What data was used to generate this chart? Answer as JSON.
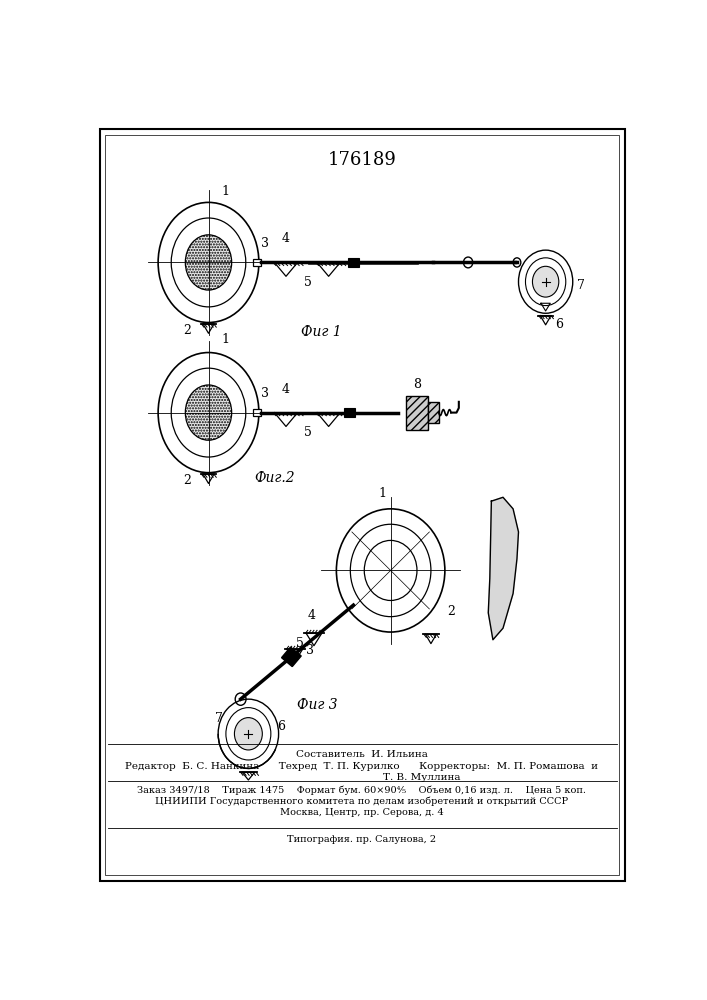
{
  "patent_number": "176189",
  "fig1_caption": "Фиг 1",
  "fig2_caption": "Фиг.2",
  "fig3_caption": "Фиг 3",
  "bottom_text_line1": "Составитель  И. Ильина",
  "bottom_text_line2": "Редактор  Б. С. Нанкина      Техред  Т. П. Курилко      Корректоры:  М. П. Ромашова  и",
  "bottom_text_line3": "Т. В. Муллина",
  "bottom_text_line4": "Заказ 3497/18    Тираж 1475    Формат бум. 60×90⅘    Объем 0,16 изд. л.    Цена 5 коп.",
  "bottom_text_line5": "ЦНИИПИ Государственного комитета по делам изобретений и открытий СССР",
  "bottom_text_line6": "Москва, Центр, пр. Серова, д. 4",
  "bottom_text_line7": "Типография. пр. Салунова, 2",
  "bg_color": "#ffffff",
  "line_color": "#000000"
}
